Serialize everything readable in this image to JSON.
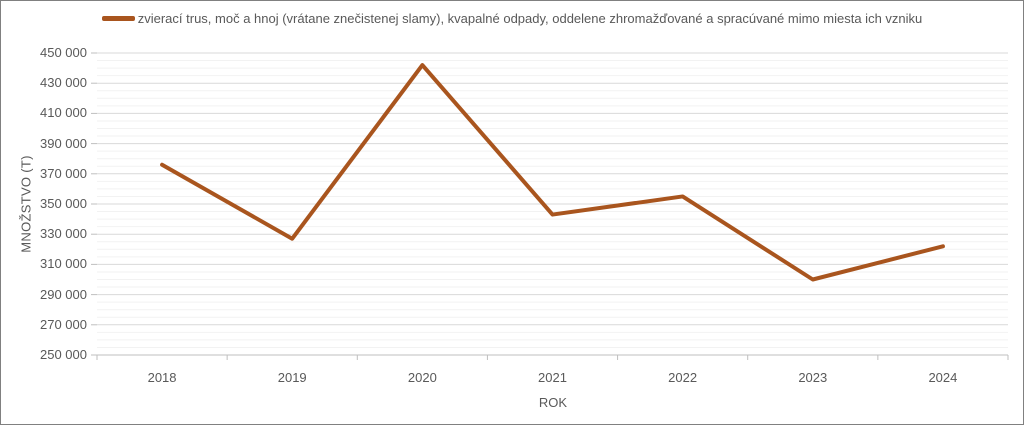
{
  "chart_data": {
    "type": "line",
    "title": "",
    "categories": [
      "2018",
      "2019",
      "2020",
      "2021",
      "2022",
      "2023",
      "2024"
    ],
    "series": [
      {
        "name": "zvierací trus, moč a hnoj (vrátane znečistenej slamy), kvapalné odpady, oddelene zhromažďované a spracúvané mimo miesta ich vzniku",
        "values": [
          376000,
          327000,
          442000,
          343000,
          355000,
          300000,
          322000
        ],
        "color": "#A9551E"
      }
    ],
    "xlabel": "ROK",
    "ylabel": "MNOŽSTVO (T)",
    "ylim": [
      250000,
      450000
    ],
    "y_major_step": 20000,
    "y_minor_step": 5000,
    "grid": true,
    "legend_position": "top",
    "y_tick_labels": [
      "250 000",
      "270 000",
      "290 000",
      "310 000",
      "330 000",
      "350 000",
      "370 000",
      "390 000",
      "410 000",
      "430 000",
      "450 000"
    ]
  },
  "colors": {
    "major_gridline": "#D9D9D9",
    "minor_gridline": "#F2F2F2",
    "axis_line": "#BFBFBF",
    "text": "#595959",
    "border": "#808080",
    "background": "#FFFFFF"
  }
}
